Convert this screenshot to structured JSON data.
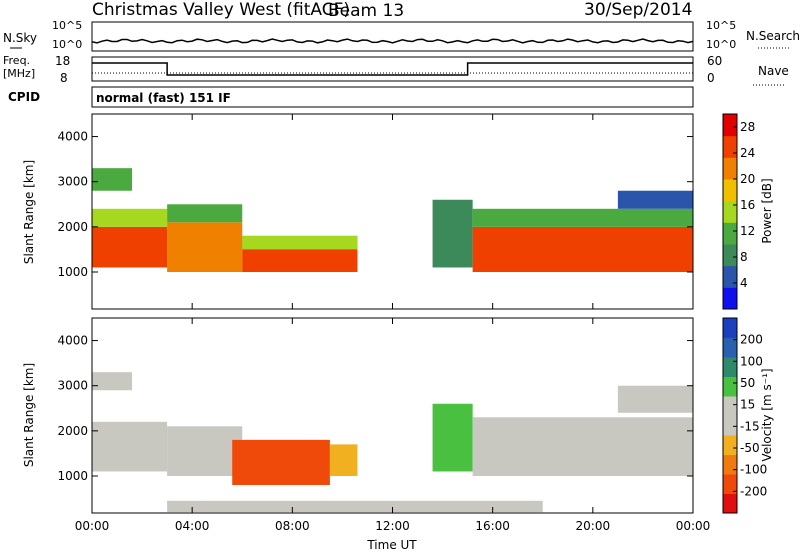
{
  "header": {
    "station": "Christmas Valley West (fitACF)",
    "beam": "Beam 13",
    "date": "30/Sep/2014"
  },
  "top_panels": {
    "nsky_label": "N.Sky",
    "nsky_hi": "10^5",
    "nsky_lo": "10^0",
    "nsearch_label": "N.Search",
    "nsearch_hi": "10^5",
    "nsearch_lo": "10^0",
    "freq_label_1": "Freq.",
    "freq_label_2": "[MHz]",
    "freq_hi": "18",
    "freq_lo": "8",
    "nave_label": "Nave",
    "nave_hi": "60",
    "nave_lo": "0",
    "cpid_label": "CPID",
    "cpid_value": "normal (fast) 151 IF"
  },
  "colors": {
    "power_scale": [
      "#1010ee",
      "#2a55aa",
      "#3c8a5a",
      "#4aaa40",
      "#a6d81f",
      "#f0c000",
      "#f08000",
      "#f04000",
      "#e00000"
    ],
    "velocity_scale": [
      "#e01010",
      "#f04a0a",
      "#f07a10",
      "#f0b020",
      "#c8c8c0",
      "#c8c8c0",
      "#4ac040",
      "#2e8a6a",
      "#2a60b0",
      "#1a40c0"
    ]
  },
  "chart_data": [
    {
      "type": "heatmap",
      "title": "",
      "xlabel": "",
      "ylabel": "Slant Range [km]",
      "x_ticks": [
        "00:00",
        "04:00",
        "08:00",
        "12:00",
        "16:00",
        "20:00",
        "00:00"
      ],
      "y_ticks": [
        "1000",
        "2000",
        "3000",
        "4000"
      ],
      "ylim": [
        180,
        4500
      ],
      "colorbar_label": "Power [dB]",
      "colorbar_ticks": [
        "4",
        "8",
        "12",
        "16",
        "20",
        "24",
        "28"
      ],
      "colorbar_range": [
        0,
        30
      ],
      "regions": [
        {
          "t_start": 0.0,
          "t_end": 3.0,
          "range_low": 1100,
          "range_high": 2000,
          "value": 26
        },
        {
          "t_start": 0.0,
          "t_end": 3.0,
          "range_low": 2000,
          "range_high": 2400,
          "value": 14
        },
        {
          "t_start": 0.0,
          "t_end": 1.6,
          "range_low": 2800,
          "range_high": 3300,
          "value": 10
        },
        {
          "t_start": 3.0,
          "t_end": 6.0,
          "range_low": 1000,
          "range_high": 2100,
          "value": 20
        },
        {
          "t_start": 3.0,
          "t_end": 6.0,
          "range_low": 2100,
          "range_high": 2500,
          "value": 12
        },
        {
          "t_start": 6.0,
          "t_end": 10.6,
          "range_low": 1000,
          "range_high": 1800,
          "value": 24
        },
        {
          "t_start": 6.0,
          "t_end": 10.6,
          "range_low": 1500,
          "range_high": 1800,
          "value": 14
        },
        {
          "t_start": 13.6,
          "t_end": 15.2,
          "range_low": 1100,
          "range_high": 2600,
          "value": 8
        },
        {
          "t_start": 15.2,
          "t_end": 24.0,
          "range_low": 1000,
          "range_high": 2000,
          "value": 25
        },
        {
          "t_start": 15.2,
          "t_end": 24.0,
          "range_low": 2000,
          "range_high": 2400,
          "value": 11
        },
        {
          "t_start": 21.0,
          "t_end": 24.0,
          "range_low": 2400,
          "range_high": 2800,
          "value": 6
        }
      ]
    },
    {
      "type": "heatmap",
      "title": "",
      "xlabel": "Time UT",
      "ylabel": "Slant Range [km]",
      "x_ticks": [
        "00:00",
        "04:00",
        "08:00",
        "12:00",
        "16:00",
        "20:00",
        "00:00"
      ],
      "y_ticks": [
        "1000",
        "2000",
        "3000",
        "4000"
      ],
      "ylim": [
        180,
        4500
      ],
      "colorbar_label": "Velocity [m s⁻¹]",
      "colorbar_ticks": [
        "200",
        "100",
        "50",
        "15",
        "-15",
        "-50",
        "-100",
        "-200"
      ],
      "colorbar_range": [
        -250,
        250
      ],
      "regions": [
        {
          "t_start": 0.0,
          "t_end": 3.0,
          "range_low": 1100,
          "range_high": 2200,
          "value": 0
        },
        {
          "t_start": 0.0,
          "t_end": 1.6,
          "range_low": 2900,
          "range_high": 3300,
          "value": 0
        },
        {
          "t_start": 3.0,
          "t_end": 6.0,
          "range_low": 1000,
          "range_high": 2100,
          "value": -40
        },
        {
          "t_start": 5.6,
          "t_end": 9.5,
          "range_low": 800,
          "range_high": 1800,
          "value": -200
        },
        {
          "t_start": 9.5,
          "t_end": 10.6,
          "range_low": 1000,
          "range_high": 1700,
          "value": -80
        },
        {
          "t_start": 13.6,
          "t_end": 15.2,
          "range_low": 1100,
          "range_high": 2600,
          "value": 60
        },
        {
          "t_start": 15.2,
          "t_end": 24.0,
          "range_low": 1000,
          "range_high": 2300,
          "value": 0
        },
        {
          "t_start": 21.0,
          "t_end": 24.0,
          "range_low": 2400,
          "range_high": 3000,
          "value": 0
        },
        {
          "t_start": 3.0,
          "t_end": 18.0,
          "range_low": 200,
          "range_high": 450,
          "value": -40
        }
      ]
    },
    {
      "type": "line",
      "title": "",
      "series": [
        {
          "name": "Freq.",
          "x": [
            0,
            3.0,
            3.0,
            15.0,
            15.0,
            24
          ],
          "values": [
            15.5,
            15.5,
            10.5,
            10.5,
            15.5,
            15.5
          ]
        }
      ],
      "ylim": [
        8,
        18
      ]
    }
  ]
}
